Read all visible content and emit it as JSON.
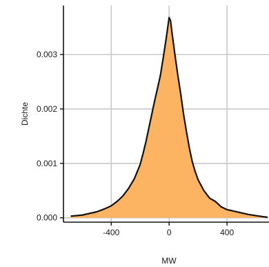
{
  "chart_data": {
    "type": "area",
    "title": "",
    "xlabel": "MW",
    "ylabel": "Dichte",
    "xlim": [
      -730,
      690
    ],
    "ylim": [
      -8e-05,
      0.0039
    ],
    "x_ticks": [
      -400,
      0,
      400
    ],
    "x_tick_labels": [
      "-400",
      "0",
      "400"
    ],
    "y_ticks": [
      0.0,
      0.001,
      0.002,
      0.003
    ],
    "y_tick_labels": [
      "0.000",
      "0.001",
      "0.002",
      "0.003"
    ],
    "grid": true,
    "legend": "none",
    "fill_color": "#FDB462",
    "line_color": "#111111",
    "grid_color": "#c8c8c8",
    "series": [
      {
        "x": [
          -680,
          -600,
          -550,
          -500,
          -450,
          -400,
          -360,
          -320,
          -280,
          -240,
          -200,
          -180,
          -160,
          -140,
          -120,
          -100,
          -80,
          -60,
          -40,
          -20,
          0,
          10,
          20,
          40,
          60,
          80,
          100,
          120,
          140,
          160,
          180,
          200,
          240,
          280,
          320,
          360,
          400,
          450,
          500,
          550,
          600,
          650,
          680
        ],
        "y": [
          3e-05,
          5e-05,
          8e-05,
          0.00011,
          0.00016,
          0.00022,
          0.0003,
          0.0004,
          0.00054,
          0.00072,
          0.00098,
          0.00118,
          0.0014,
          0.00165,
          0.0019,
          0.00215,
          0.00238,
          0.00262,
          0.00295,
          0.0033,
          0.00368,
          0.00362,
          0.0034,
          0.003,
          0.00262,
          0.00228,
          0.0019,
          0.00158,
          0.00128,
          0.00103,
          0.00085,
          0.0007,
          0.0005,
          0.00036,
          0.0003,
          0.0002,
          0.00015,
          0.00012,
          9e-05,
          6e-05,
          4e-05,
          2e-05,
          1e-05
        ]
      }
    ]
  }
}
